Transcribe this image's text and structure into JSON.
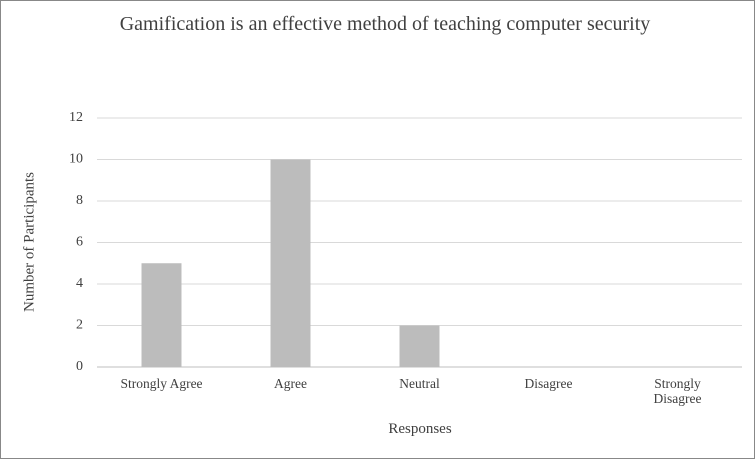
{
  "chart_data": {
    "type": "bar",
    "title": "Gamification is an effective method of teaching computer security",
    "x_label": "Responses",
    "y_label": "Number of Participants",
    "categories": [
      "Strongly Agree",
      "Agree",
      "Neutral",
      "Disagree",
      "Strongly Disagree"
    ],
    "values": [
      5,
      10,
      2,
      0,
      0
    ],
    "color": "#bcbcbc",
    "ylim": [
      0,
      12
    ],
    "yticks": [
      0,
      2,
      4,
      6,
      8,
      10,
      12
    ],
    "grid": true
  }
}
